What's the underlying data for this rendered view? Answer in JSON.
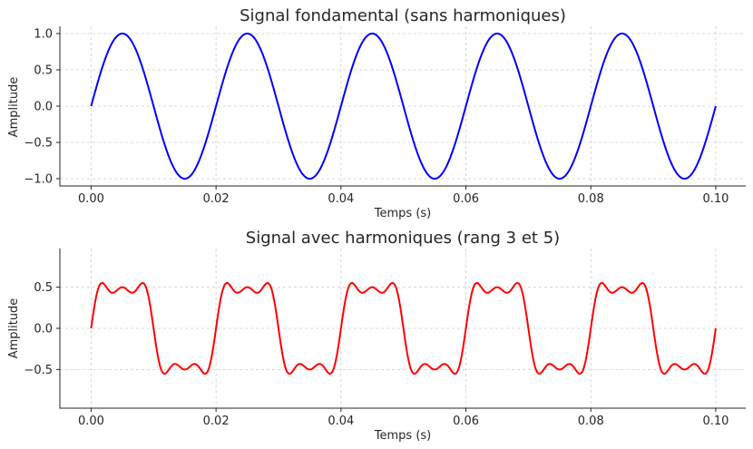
{
  "chart_data": [
    {
      "type": "line",
      "title": "Signal fondamental (sans harmoniques)",
      "xlabel": "Temps (s)",
      "ylabel": "Amplitude",
      "xlim": [
        -0.005,
        0.1048
      ],
      "ylim": [
        -1.1,
        1.1
      ],
      "xticks": [
        0.0,
        0.02,
        0.04,
        0.06,
        0.08,
        0.1
      ],
      "xticklabels": [
        "0.00",
        "0.02",
        "0.04",
        "0.06",
        "0.08",
        "0.10"
      ],
      "yticks": [
        -1.0,
        -0.5,
        0.0,
        0.5,
        1.0
      ],
      "yticklabels": [
        "−1.0",
        "−0.5",
        "0.0",
        "0.5",
        "1.0"
      ],
      "grid": true,
      "series": [
        {
          "color": "#0000ff",
          "function": "sin(2*pi*f*t)",
          "frequency_hz": 50,
          "t_range": [
            0,
            0.1
          ],
          "harmonics": [
            {
              "order": 1,
              "amplitude": 1.0
            }
          ]
        }
      ]
    },
    {
      "type": "line",
      "title": "Signal avec harmoniques (rang 3 et 5)",
      "xlabel": "Temps (s)",
      "ylabel": "Amplitude",
      "xlim": [
        -0.005,
        0.1048
      ],
      "ylim": [
        -0.97,
        0.97
      ],
      "xticks": [
        0.0,
        0.02,
        0.04,
        0.06,
        0.08,
        0.1
      ],
      "xticklabels": [
        "0.00",
        "0.02",
        "0.04",
        "0.06",
        "0.08",
        "0.10"
      ],
      "yticks": [
        -0.5,
        0.0,
        0.5
      ],
      "yticklabels": [
        "−0.5",
        "0.0",
        "0.5"
      ],
      "grid": true,
      "series": [
        {
          "color": "#ff0000",
          "function": "0.6*sin(wt) + 0.2*sin(3wt) + 0.1*sin(5wt)",
          "frequency_hz": 50,
          "t_range": [
            0,
            0.1
          ],
          "harmonics": [
            {
              "order": 1,
              "amplitude": 0.6
            },
            {
              "order": 3,
              "amplitude": 0.2
            },
            {
              "order": 5,
              "amplitude": 0.1
            }
          ]
        }
      ]
    }
  ]
}
